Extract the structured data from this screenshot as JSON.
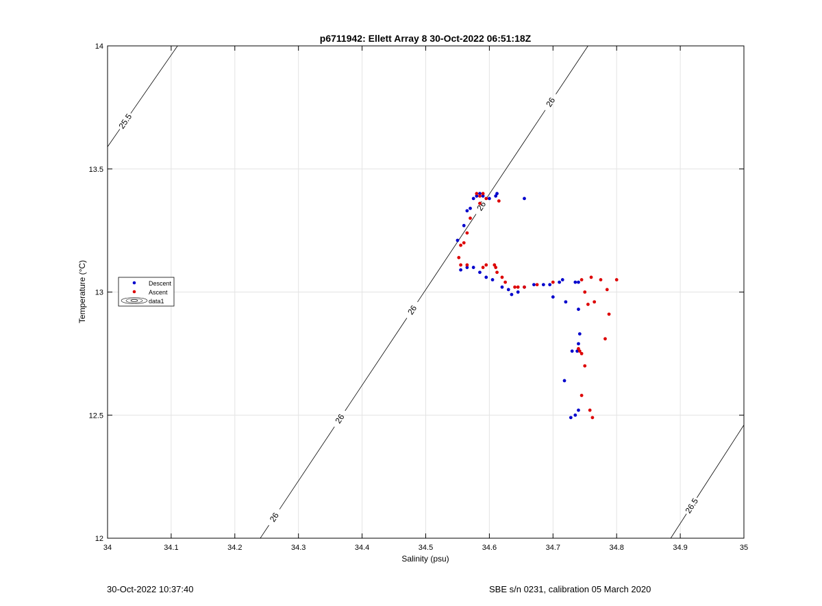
{
  "chart_data": {
    "type": "scatter",
    "title": "p6711942: Ellett Array 8 30-Oct-2022 06:51:18Z",
    "xlabel": "Salinity (psu)",
    "ylabel": "Temperature (°C)",
    "xlim": [
      34,
      35
    ],
    "ylim": [
      12,
      14
    ],
    "x_ticks": [
      34,
      34.1,
      34.2,
      34.3,
      34.4,
      34.5,
      34.6,
      34.7,
      34.8,
      34.9,
      35
    ],
    "x_tick_labels": [
      "34",
      "34.1",
      "34.2",
      "34.3",
      "34.4",
      "34.5",
      "34.6",
      "34.7",
      "34.8",
      "34.9",
      "35"
    ],
    "y_ticks": [
      12,
      12.5,
      13,
      13.5,
      14
    ],
    "y_tick_labels": [
      "12",
      "12.5",
      "13",
      "13.5",
      "14"
    ],
    "grid": true,
    "legend_position": "left",
    "legend": [
      {
        "label": "Descent",
        "marker": "dot",
        "color": "#0000cc"
      },
      {
        "label": "Ascent",
        "marker": "dot",
        "color": "#dd0000"
      },
      {
        "label": "data1",
        "marker": "contour",
        "color": "#000000"
      }
    ],
    "contours": [
      {
        "label": "25.5",
        "points": [
          [
            34.0,
            13.59
          ],
          [
            34.11,
            14.0
          ]
        ],
        "label_positions": [
          [
            34.03,
            13.69
          ]
        ]
      },
      {
        "label": "26",
        "points": [
          [
            34.24,
            12.0
          ],
          [
            34.755,
            14.0
          ]
        ],
        "label_positions": [
          [
            34.265,
            12.08
          ],
          [
            34.368,
            12.48
          ],
          [
            34.477,
            12.93
          ],
          [
            34.587,
            13.35
          ],
          [
            34.697,
            13.77
          ]
        ]
      },
      {
        "label": "26.5",
        "points": [
          [
            34.885,
            12.0
          ],
          [
            35.0,
            12.46
          ]
        ],
        "label_positions": [
          [
            34.925,
            12.12
          ]
        ]
      }
    ],
    "series": [
      {
        "name": "Descent",
        "color": "#0000cc",
        "points": [
          [
            34.55,
            13.21
          ],
          [
            34.56,
            13.27
          ],
          [
            34.565,
            13.33
          ],
          [
            34.57,
            13.34
          ],
          [
            34.575,
            13.38
          ],
          [
            34.58,
            13.39
          ],
          [
            34.585,
            13.4
          ],
          [
            34.59,
            13.39
          ],
          [
            34.6,
            13.38
          ],
          [
            34.61,
            13.39
          ],
          [
            34.612,
            13.4
          ],
          [
            34.655,
            13.38
          ],
          [
            34.555,
            13.09
          ],
          [
            34.565,
            13.1
          ],
          [
            34.575,
            13.1
          ],
          [
            34.585,
            13.08
          ],
          [
            34.595,
            13.06
          ],
          [
            34.605,
            13.05
          ],
          [
            34.62,
            13.02
          ],
          [
            34.63,
            13.01
          ],
          [
            34.635,
            12.99
          ],
          [
            34.645,
            13.0
          ],
          [
            34.655,
            13.02
          ],
          [
            34.67,
            13.03
          ],
          [
            34.685,
            13.03
          ],
          [
            34.695,
            13.03
          ],
          [
            34.71,
            13.04
          ],
          [
            34.715,
            13.05
          ],
          [
            34.735,
            13.04
          ],
          [
            34.74,
            13.04
          ],
          [
            34.7,
            12.98
          ],
          [
            34.72,
            12.96
          ],
          [
            34.74,
            12.93
          ],
          [
            34.742,
            12.83
          ],
          [
            34.74,
            12.79
          ],
          [
            34.73,
            12.76
          ],
          [
            34.738,
            12.76
          ],
          [
            34.718,
            12.64
          ],
          [
            34.74,
            12.52
          ],
          [
            34.735,
            12.5
          ],
          [
            34.728,
            12.49
          ]
        ]
      },
      {
        "name": "Ascent",
        "color": "#dd0000",
        "points": [
          [
            34.58,
            13.4
          ],
          [
            34.585,
            13.39
          ],
          [
            34.59,
            13.4
          ],
          [
            34.595,
            13.38
          ],
          [
            34.585,
            13.36
          ],
          [
            34.615,
            13.37
          ],
          [
            34.57,
            13.3
          ],
          [
            34.565,
            13.24
          ],
          [
            34.56,
            13.2
          ],
          [
            34.555,
            13.19
          ],
          [
            34.552,
            13.14
          ],
          [
            34.555,
            13.11
          ],
          [
            34.565,
            13.11
          ],
          [
            34.59,
            13.1
          ],
          [
            34.595,
            13.11
          ],
          [
            34.608,
            13.11
          ],
          [
            34.61,
            13.1
          ],
          [
            34.612,
            13.08
          ],
          [
            34.62,
            13.06
          ],
          [
            34.625,
            13.04
          ],
          [
            34.64,
            13.02
          ],
          [
            34.645,
            13.02
          ],
          [
            34.655,
            13.02
          ],
          [
            34.675,
            13.03
          ],
          [
            34.7,
            13.04
          ],
          [
            34.745,
            13.05
          ],
          [
            34.76,
            13.06
          ],
          [
            34.775,
            13.05
          ],
          [
            34.8,
            13.05
          ],
          [
            34.75,
            13.0
          ],
          [
            34.765,
            12.96
          ],
          [
            34.755,
            12.95
          ],
          [
            34.785,
            13.01
          ],
          [
            34.788,
            12.91
          ],
          [
            34.782,
            12.81
          ],
          [
            34.74,
            12.77
          ],
          [
            34.742,
            12.76
          ],
          [
            34.745,
            12.75
          ],
          [
            34.75,
            12.7
          ],
          [
            34.745,
            12.58
          ],
          [
            34.758,
            12.52
          ],
          [
            34.762,
            12.49
          ]
        ]
      }
    ]
  },
  "footer": {
    "timestamp": "30-Oct-2022 10:37:40",
    "calibration": "SBE s/n 0231, calibration 05 March 2020"
  }
}
